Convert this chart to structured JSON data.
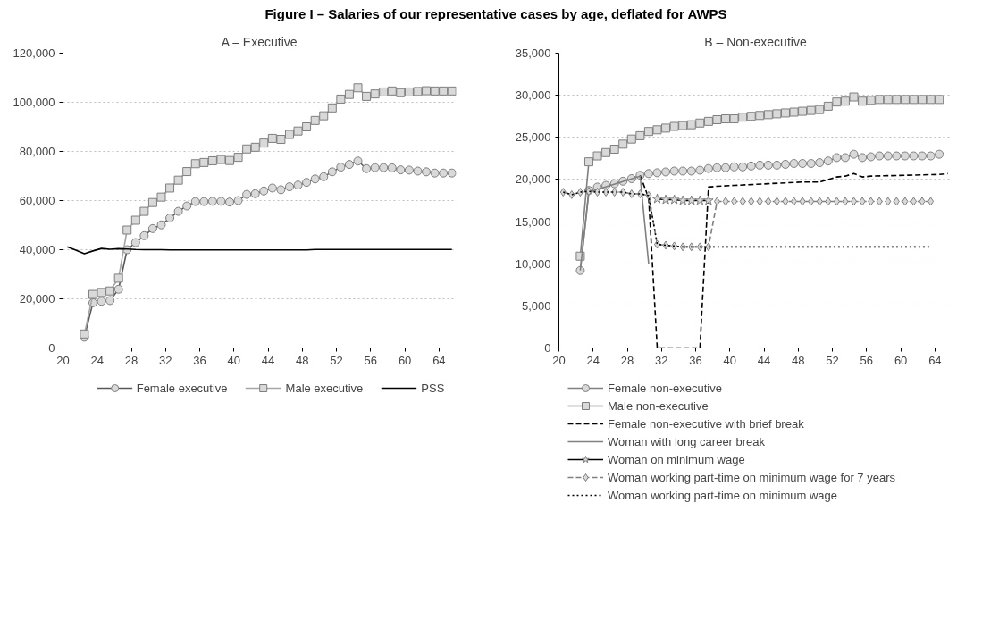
{
  "chart_data": [
    {
      "type": "line",
      "title": "A – Executive",
      "annotations": [
        "Figure I – Salaries of our representative cases by age, deflated for AWPS"
      ],
      "x": [
        22.5,
        23.5,
        24.5,
        25.5,
        26.5,
        27.5,
        28.5,
        29.5,
        30.5,
        31.5,
        32.5,
        33.5,
        34.5,
        35.5,
        36.5,
        37.5,
        38.5,
        39.5,
        40.5,
        41.5,
        42.5,
        43.5,
        44.5,
        45.5,
        46.5,
        47.5,
        48.5,
        49.5,
        50.5,
        51.5,
        52.5,
        53.5,
        54.5,
        55.5,
        56.5,
        57.5,
        58.5,
        59.5,
        60.5,
        61.5,
        62.5,
        63.5,
        64.5,
        65.5
      ],
      "xlim": [
        20,
        66
      ],
      "xticks": [
        20,
        24,
        28,
        32,
        36,
        40,
        44,
        48,
        52,
        56,
        60,
        64
      ],
      "ylim": [
        0,
        120000
      ],
      "yticks": [
        {
          "value": 0,
          "label": "0"
        },
        {
          "value": 20000,
          "label": "20,000"
        },
        {
          "value": 40000,
          "label": "40,000"
        },
        {
          "value": 60000,
          "label": "60,000"
        },
        {
          "value": 80000,
          "label": "80,000"
        },
        {
          "value": 100000,
          "label": "100,000"
        },
        {
          "value": 120000,
          "label": "120,000"
        }
      ],
      "grid": "y",
      "legend": "bottom",
      "series": [
        {
          "name": "Female executive",
          "color": "#595959",
          "marker": "circle",
          "line_style": "solid",
          "values": [
            4400,
            18400,
            19000,
            19300,
            23900,
            40000,
            42900,
            45700,
            48600,
            50100,
            52900,
            55600,
            57800,
            59600,
            59600,
            59700,
            59700,
            59400,
            60000,
            62500,
            62800,
            63900,
            65100,
            64400,
            65600,
            66300,
            67400,
            68800,
            69700,
            71700,
            73600,
            74700,
            76100,
            73000,
            73400,
            73400,
            73300,
            72500,
            72400,
            72000,
            71700,
            71200,
            71200,
            71200
          ]
        },
        {
          "name": "Male executive",
          "color": "#a6a6a6",
          "marker": "square",
          "line_style": "solid",
          "values": [
            5700,
            21800,
            22600,
            23200,
            28400,
            48000,
            52000,
            55600,
            59200,
            61400,
            65100,
            68300,
            71800,
            75000,
            75500,
            76200,
            76700,
            76300,
            77600,
            81000,
            81700,
            83400,
            85300,
            84900,
            86900,
            88300,
            90000,
            92600,
            94500,
            97700,
            101300,
            103200,
            105900,
            102400,
            103400,
            104200,
            104600,
            103900,
            104200,
            104400,
            104700,
            104600,
            104600,
            104600
          ]
        },
        {
          "name": "PSS",
          "color": "#000000",
          "marker": "none",
          "line_style": "solid",
          "x": [
            20.5,
            21.5,
            22.5,
            23.5,
            24.5,
            25.5,
            26.5,
            27.5,
            28.5,
            29.5,
            30.5,
            31.5,
            32.5,
            33.5,
            34.5,
            35.5,
            36.5,
            37.5,
            38.5,
            39.5,
            40.5,
            41.5,
            42.5,
            43.5,
            44.5,
            45.5,
            46.5,
            47.5,
            48.5,
            49.5,
            50.5,
            51.5,
            52.5,
            53.5,
            54.5,
            55.5,
            56.5,
            57.5,
            58.5,
            59.5,
            60.5,
            61.5,
            62.5,
            63.5,
            64.5,
            65.5
          ],
          "values": [
            41200,
            39800,
            38400,
            39500,
            40500,
            40200,
            40400,
            40300,
            40100,
            40000,
            40000,
            40000,
            39900,
            39900,
            39900,
            39900,
            39900,
            39900,
            39900,
            39900,
            39900,
            39900,
            39900,
            39900,
            39900,
            39900,
            39900,
            39900,
            39900,
            40100,
            40100,
            40100,
            40100,
            40100,
            40100,
            40100,
            40100,
            40100,
            40100,
            40100,
            40100,
            40100,
            40100,
            40100,
            40100,
            40100
          ]
        }
      ]
    },
    {
      "type": "line",
      "title": "B – Non-executive",
      "x": [
        22.5,
        23.5,
        24.5,
        25.5,
        26.5,
        27.5,
        28.5,
        29.5,
        30.5,
        31.5,
        32.5,
        33.5,
        34.5,
        35.5,
        36.5,
        37.5,
        38.5,
        39.5,
        40.5,
        41.5,
        42.5,
        43.5,
        44.5,
        45.5,
        46.5,
        47.5,
        48.5,
        49.5,
        50.5,
        51.5,
        52.5,
        53.5,
        54.5,
        55.5,
        56.5,
        57.5,
        58.5,
        59.5,
        60.5,
        61.5,
        62.5,
        63.5,
        64.5
      ],
      "xlim": [
        20,
        66
      ],
      "xticks": [
        20,
        24,
        28,
        32,
        36,
        40,
        44,
        48,
        52,
        56,
        60,
        64
      ],
      "ylim": [
        0,
        35000
      ],
      "yticks": [
        {
          "value": 0,
          "label": "0"
        },
        {
          "value": 5000,
          "label": "5,000"
        },
        {
          "value": 10000,
          "label": "10,000"
        },
        {
          "value": 15000,
          "label": "15,000"
        },
        {
          "value": 20000,
          "label": "20,000"
        },
        {
          "value": 25000,
          "label": "25,000"
        },
        {
          "value": 30000,
          "label": "30,000"
        },
        {
          "value": 35000,
          "label": "35,000"
        }
      ],
      "grid": "y",
      "legend": "bottom",
      "series": [
        {
          "name": "Female non-executive",
          "color": "#808080",
          "marker": "circle",
          "line_style": "solid",
          "values": [
            9200,
            18700,
            19100,
            19300,
            19500,
            19800,
            20100,
            20500,
            20700,
            20800,
            20900,
            21000,
            21000,
            21000,
            21100,
            21300,
            21400,
            21400,
            21500,
            21500,
            21600,
            21700,
            21700,
            21700,
            21800,
            21900,
            21900,
            21900,
            22000,
            22200,
            22600,
            22600,
            23000,
            22600,
            22700,
            22800,
            22800,
            22800,
            22800,
            22800,
            22800,
            22800,
            23000
          ]
        },
        {
          "name": "Male non-executive",
          "color": "#808080",
          "marker": "square",
          "line_style": "solid",
          "values": [
            10900,
            22100,
            22800,
            23200,
            23600,
            24200,
            24800,
            25200,
            25700,
            25900,
            26100,
            26300,
            26400,
            26500,
            26700,
            26900,
            27100,
            27200,
            27200,
            27400,
            27500,
            27600,
            27700,
            27800,
            27900,
            28000,
            28100,
            28200,
            28300,
            28700,
            29200,
            29300,
            29800,
            29300,
            29400,
            29500,
            29500,
            29500,
            29500,
            29500,
            29500,
            29500,
            29500
          ]
        },
        {
          "name": "Female non-executive with brief break",
          "color": "#000000",
          "marker": "none",
          "line_style": "dashed",
          "x": [
            29.5,
            30.5,
            31.5,
            32.5,
            33.5,
            34.5,
            35.5,
            36.5,
            37.5,
            38.5,
            40.5,
            42.5,
            44.5,
            46.5,
            48.5,
            50.5,
            51.5,
            52.5,
            53.5,
            54.5,
            55.5,
            56.5,
            60.5,
            64.5,
            65.5
          ],
          "values": [
            20500,
            17800,
            0,
            0,
            0,
            0,
            0,
            0,
            19100,
            19200,
            19300,
            19400,
            19500,
            19600,
            19700,
            19700,
            20000,
            20300,
            20400,
            20700,
            20300,
            20400,
            20500,
            20600,
            20700
          ]
        },
        {
          "name": "Woman with long career break",
          "color": "#808080",
          "marker": "none",
          "line_style": "solid",
          "x": [
            22.5,
            23.5,
            29.5,
            30.5
          ],
          "values": [
            9200,
            18500,
            20400,
            10000
          ]
        },
        {
          "name": "Woman on minimum wage",
          "color": "#000000",
          "marker": "star",
          "line_style": "solid",
          "x": [
            31.5,
            32.5,
            33.5,
            34.5,
            35.5,
            36.5,
            37.5
          ],
          "values": [
            17700,
            17600,
            17600,
            17500,
            17500,
            17500,
            17500
          ]
        },
        {
          "name": "Woman working part-time on minimum wage for 7 years",
          "color": "#808080",
          "marker": "diamond",
          "line_style": "dashed",
          "x": [
            20.5,
            21.5,
            22.5,
            23.5,
            24.5,
            25.5,
            26.5,
            27.5,
            28.5,
            29.5,
            30.5,
            31.5,
            32.5,
            33.5,
            34.5,
            35.5,
            36.5,
            37.5,
            38.5,
            39.5,
            40.5,
            41.5,
            42.5,
            43.5,
            44.5,
            45.5,
            46.5,
            47.5,
            48.5,
            49.5,
            50.5,
            51.5,
            52.5,
            53.5,
            54.5,
            55.5,
            56.5,
            57.5,
            58.5,
            59.5,
            60.5,
            61.5,
            62.5,
            63.5
          ],
          "values": [
            18500,
            18200,
            18500,
            18600,
            18500,
            18500,
            18500,
            18500,
            18300,
            18300,
            18100,
            12300,
            12200,
            12100,
            12000,
            12000,
            12000,
            12000,
            17400,
            17400,
            17400,
            17400,
            17400,
            17400,
            17400,
            17400,
            17400,
            17400,
            17400,
            17400,
            17400,
            17400,
            17400,
            17400,
            17400,
            17400,
            17400,
            17400,
            17400,
            17400,
            17400,
            17400,
            17400,
            17400
          ]
        },
        {
          "name": "Woman working part-time on minimum wage",
          "color": "#000000",
          "marker": "none",
          "line_style": "dotted",
          "x": [
            20.5,
            21.5,
            22.5,
            23.5,
            24.5,
            25.5,
            26.5,
            27.5,
            28.5,
            29.5,
            30.5,
            31.5,
            32.5,
            33.5,
            34.5,
            35.5,
            36.5,
            37.5,
            38.5,
            39.5,
            40.5,
            41.5,
            42.5,
            43.5,
            44.5,
            45.5,
            46.5,
            47.5,
            48.5,
            49.5,
            50.5,
            51.5,
            52.5,
            53.5,
            54.5,
            55.5,
            56.5,
            57.5,
            58.5,
            59.5,
            60.5,
            61.5,
            62.5,
            63.5
          ],
          "values": [
            18500,
            18200,
            18500,
            18600,
            18500,
            18500,
            18500,
            18500,
            18300,
            18300,
            18100,
            12300,
            12200,
            12100,
            12000,
            12000,
            12000,
            12000,
            12000,
            12000,
            12000,
            12000,
            12000,
            12000,
            12000,
            12000,
            12000,
            12000,
            12000,
            12000,
            12000,
            12000,
            12000,
            12000,
            12000,
            12000,
            12000,
            12000,
            12000,
            12000,
            12000,
            12000,
            12000,
            12000
          ]
        }
      ]
    }
  ]
}
